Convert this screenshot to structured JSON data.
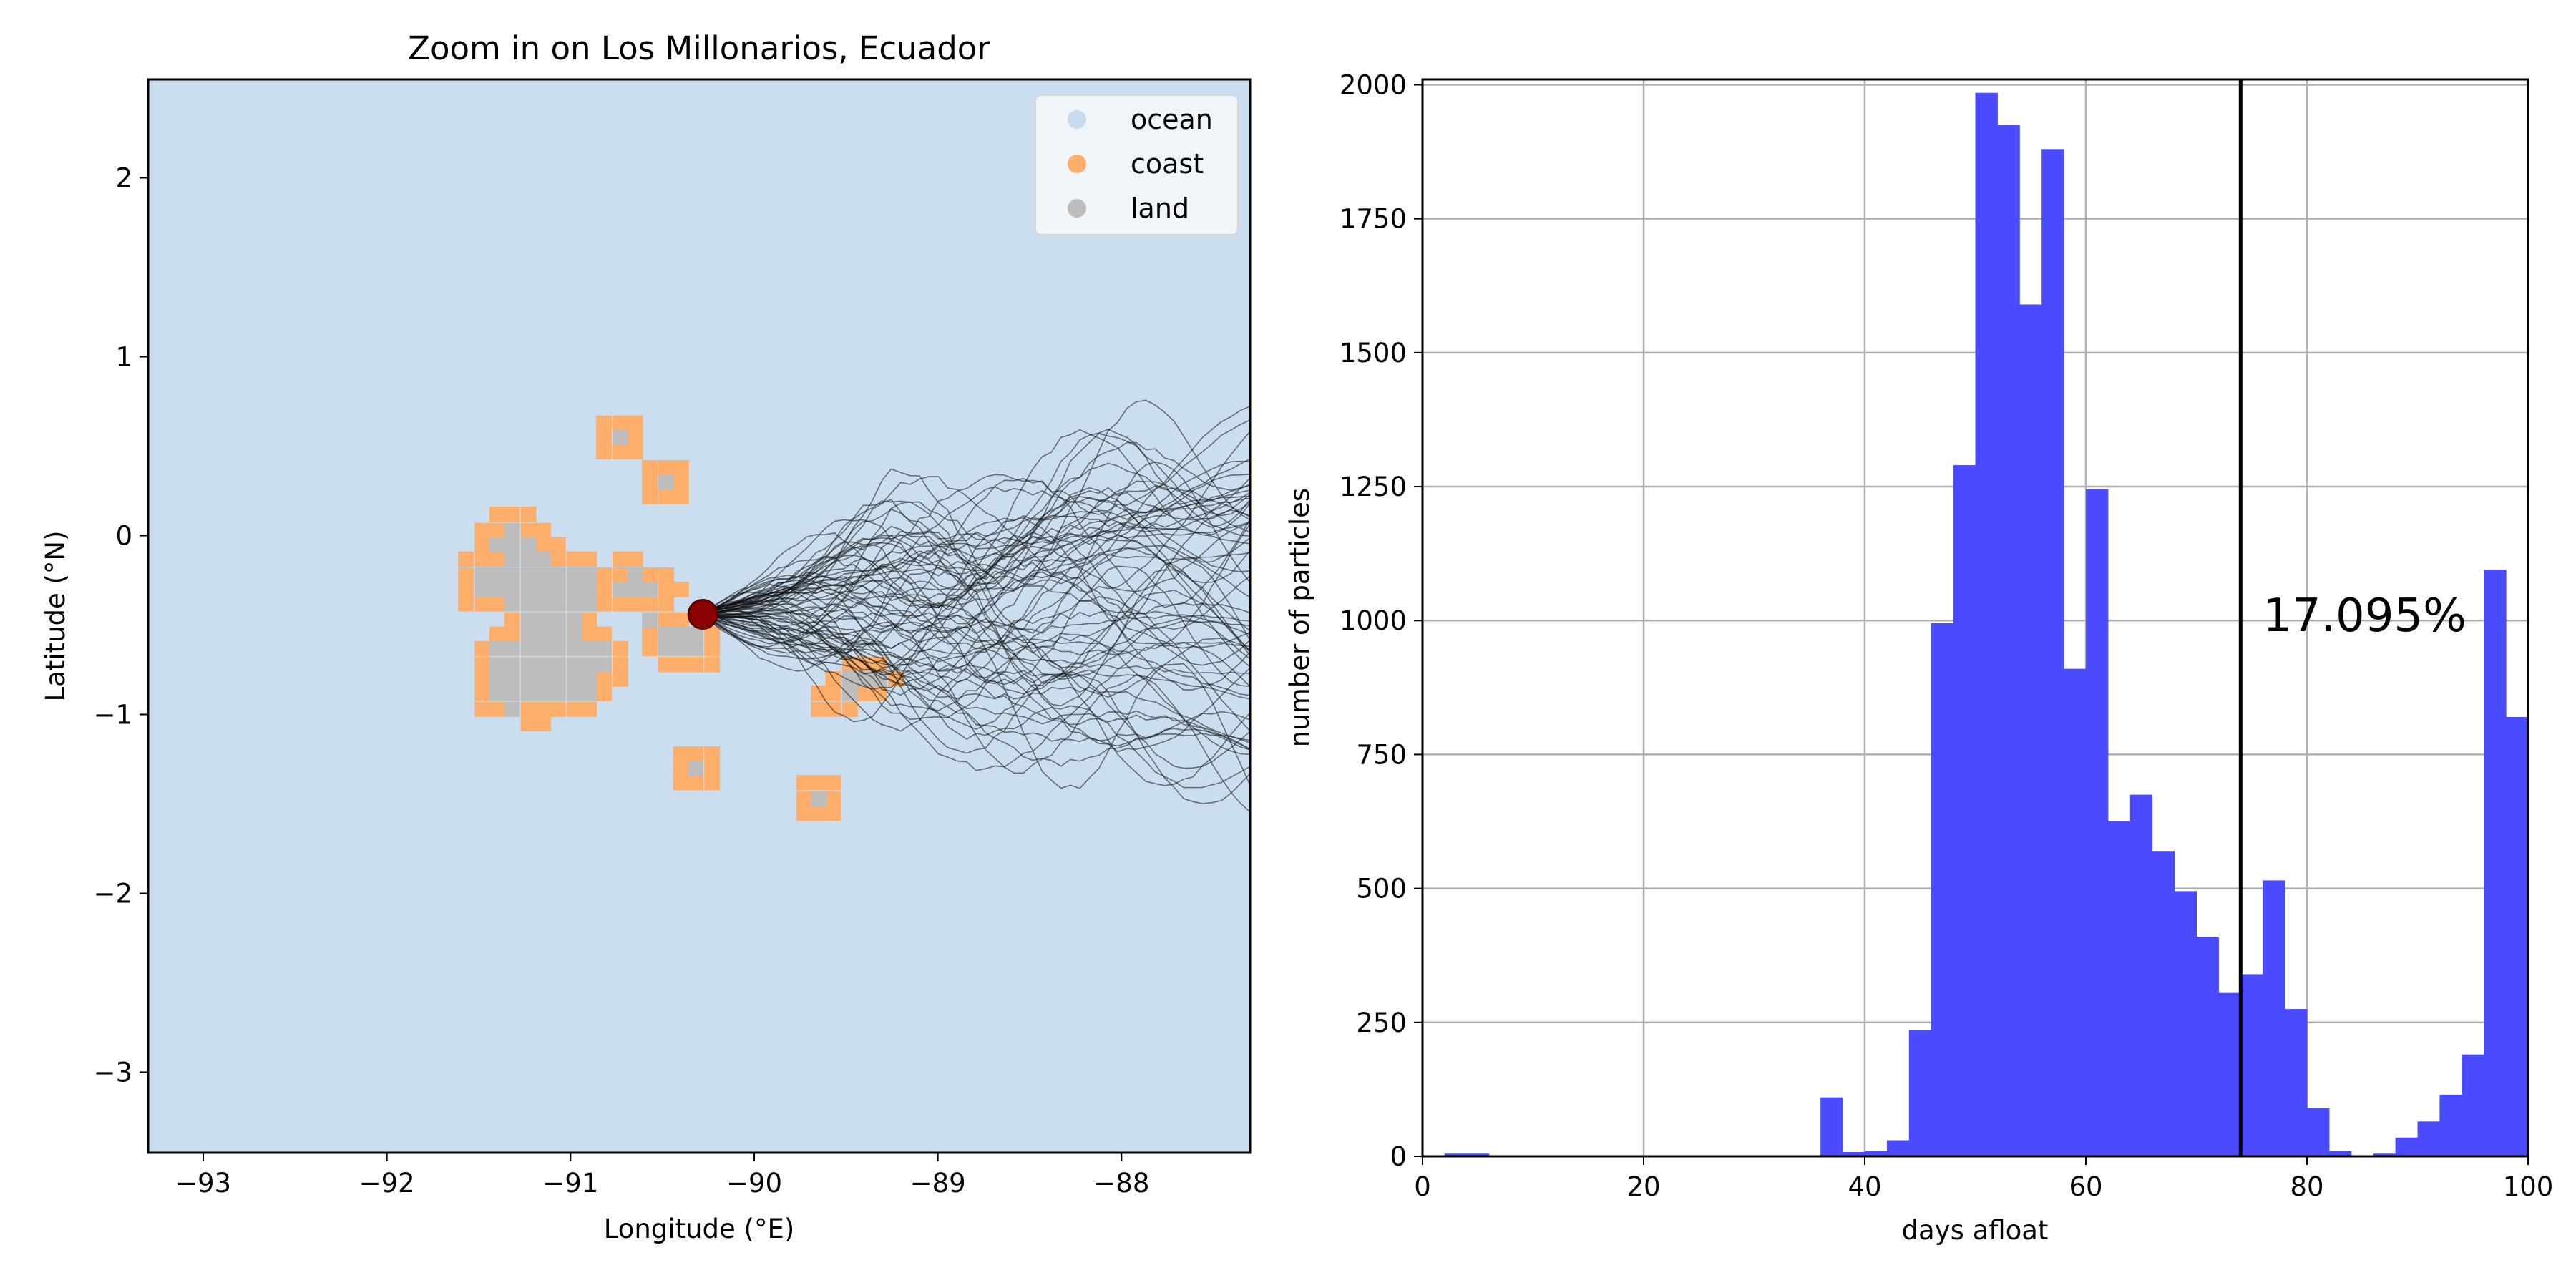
{
  "chart_data": [
    {
      "type": "map",
      "title": "Zoom in on Los Millonarios, Ecuador",
      "xlabel": "Longitude (°E)",
      "ylabel": "Latitude (°N)",
      "xlim": [
        -93.3,
        -87.3
      ],
      "ylim": [
        -3.45,
        2.55
      ],
      "xticks": [
        -93,
        -92,
        -91,
        -90,
        -89,
        -88
      ],
      "xtick_labels": [
        "−93",
        "−92",
        "−91",
        "−90",
        "−89",
        "−88"
      ],
      "yticks": [
        -3,
        -2,
        -1,
        0,
        1,
        2
      ],
      "ytick_labels": [
        "−3",
        "−2",
        "−1",
        "0",
        "1",
        "2"
      ],
      "legend": {
        "position": "top-right",
        "entries": [
          {
            "label": "ocean",
            "color": "#c6dbef"
          },
          {
            "label": "coast",
            "color": "#fdae6b"
          },
          {
            "label": "land",
            "color": "#bdbdbd"
          }
        ]
      },
      "background_color": "#cbdeef",
      "release_point": {
        "lon": -90.28,
        "lat": -0.44,
        "color": "#8b0000"
      },
      "grid_cell_deg": 0.0833,
      "coast_cells": [
        [
          -91.4,
          0.12
        ],
        [
          -91.32,
          0.12
        ],
        [
          -91.23,
          0.12
        ],
        [
          -91.48,
          0.03
        ],
        [
          -91.4,
          0.03
        ],
        [
          -91.32,
          0.03
        ],
        [
          -91.23,
          0.03
        ],
        [
          -91.15,
          0.03
        ],
        [
          -91.48,
          -0.05
        ],
        [
          -91.15,
          -0.05
        ],
        [
          -91.07,
          -0.05
        ],
        [
          -91.57,
          -0.13
        ],
        [
          -91.48,
          -0.13
        ],
        [
          -91.4,
          -0.13
        ],
        [
          -91.07,
          -0.13
        ],
        [
          -90.98,
          -0.13
        ],
        [
          -90.9,
          -0.13
        ],
        [
          -90.73,
          -0.13
        ],
        [
          -90.65,
          -0.13
        ],
        [
          -91.57,
          -0.22
        ],
        [
          -90.82,
          -0.22
        ],
        [
          -90.73,
          -0.22
        ],
        [
          -90.57,
          -0.22
        ],
        [
          -90.48,
          -0.22
        ],
        [
          -91.57,
          -0.3
        ],
        [
          -90.82,
          -0.3
        ],
        [
          -90.48,
          -0.3
        ],
        [
          -90.4,
          -0.3
        ],
        [
          -91.57,
          -0.38
        ],
        [
          -91.48,
          -0.38
        ],
        [
          -91.4,
          -0.38
        ],
        [
          -90.82,
          -0.38
        ],
        [
          -90.73,
          -0.38
        ],
        [
          -90.65,
          -0.38
        ],
        [
          -90.57,
          -0.38
        ],
        [
          -90.48,
          -0.38
        ],
        [
          -91.32,
          -0.47
        ],
        [
          -90.9,
          -0.47
        ],
        [
          -90.48,
          -0.47
        ],
        [
          -90.4,
          -0.47
        ],
        [
          -91.4,
          -0.55
        ],
        [
          -91.32,
          -0.55
        ],
        [
          -90.9,
          -0.55
        ],
        [
          -90.82,
          -0.55
        ],
        [
          -90.57,
          -0.55
        ],
        [
          -90.23,
          -0.55
        ],
        [
          -91.48,
          -0.63
        ],
        [
          -90.73,
          -0.63
        ],
        [
          -90.57,
          -0.63
        ],
        [
          -90.23,
          -0.63
        ],
        [
          -91.48,
          -0.72
        ],
        [
          -90.73,
          -0.72
        ],
        [
          -90.48,
          -0.72
        ],
        [
          -90.4,
          -0.72
        ],
        [
          -90.32,
          -0.72
        ],
        [
          -90.23,
          -0.72
        ],
        [
          -91.48,
          -0.8
        ],
        [
          -90.82,
          -0.8
        ],
        [
          -90.73,
          -0.8
        ],
        [
          -91.48,
          -0.88
        ],
        [
          -90.82,
          -0.88
        ],
        [
          -91.48,
          -0.97
        ],
        [
          -91.4,
          -0.97
        ],
        [
          -91.23,
          -0.97
        ],
        [
          -91.15,
          -0.97
        ],
        [
          -91.07,
          -0.97
        ],
        [
          -90.98,
          -0.97
        ],
        [
          -90.9,
          -0.97
        ],
        [
          -91.23,
          -1.05
        ],
        [
          -91.15,
          -1.05
        ],
        [
          -90.82,
          0.63
        ],
        [
          -90.73,
          0.63
        ],
        [
          -90.65,
          0.63
        ],
        [
          -90.82,
          0.55
        ],
        [
          -90.65,
          0.55
        ],
        [
          -90.82,
          0.47
        ],
        [
          -90.73,
          0.47
        ],
        [
          -90.65,
          0.47
        ],
        [
          -90.57,
          0.38
        ],
        [
          -90.48,
          0.38
        ],
        [
          -90.4,
          0.38
        ],
        [
          -90.57,
          0.3
        ],
        [
          -90.4,
          0.3
        ],
        [
          -90.57,
          0.22
        ],
        [
          -90.48,
          0.22
        ],
        [
          -90.4,
          0.22
        ],
        [
          -90.4,
          -1.22
        ],
        [
          -90.32,
          -1.22
        ],
        [
          -90.23,
          -1.22
        ],
        [
          -90.4,
          -1.3
        ],
        [
          -90.23,
          -1.3
        ],
        [
          -90.4,
          -1.38
        ],
        [
          -90.32,
          -1.38
        ],
        [
          -90.23,
          -1.38
        ],
        [
          -89.73,
          -1.38
        ],
        [
          -89.65,
          -1.38
        ],
        [
          -89.57,
          -1.38
        ],
        [
          -89.73,
          -1.47
        ],
        [
          -89.57,
          -1.47
        ],
        [
          -89.73,
          -1.55
        ],
        [
          -89.65,
          -1.55
        ],
        [
          -89.57,
          -1.55
        ],
        [
          -89.48,
          -0.72
        ],
        [
          -89.4,
          -0.72
        ],
        [
          -89.32,
          -0.72
        ],
        [
          -89.57,
          -0.8
        ],
        [
          -89.23,
          -0.8
        ],
        [
          -89.65,
          -0.88
        ],
        [
          -89.57,
          -0.88
        ],
        [
          -89.4,
          -0.88
        ],
        [
          -89.32,
          -0.88
        ],
        [
          -89.65,
          -0.97
        ],
        [
          -89.57,
          -0.97
        ],
        [
          -89.48,
          -0.97
        ]
      ],
      "land_cells": [
        [
          -91.32,
          0.03
        ],
        [
          -91.4,
          -0.05
        ],
        [
          -91.32,
          -0.05
        ],
        [
          -91.23,
          -0.05
        ],
        [
          -91.32,
          -0.13
        ],
        [
          -91.23,
          -0.13
        ],
        [
          -91.15,
          -0.13
        ],
        [
          -91.48,
          -0.22
        ],
        [
          -91.4,
          -0.22
        ],
        [
          -91.32,
          -0.22
        ],
        [
          -91.23,
          -0.22
        ],
        [
          -91.15,
          -0.22
        ],
        [
          -91.07,
          -0.22
        ],
        [
          -90.98,
          -0.22
        ],
        [
          -90.9,
          -0.22
        ],
        [
          -90.65,
          -0.22
        ],
        [
          -91.48,
          -0.3
        ],
        [
          -91.4,
          -0.3
        ],
        [
          -91.32,
          -0.3
        ],
        [
          -91.23,
          -0.3
        ],
        [
          -91.15,
          -0.3
        ],
        [
          -91.07,
          -0.3
        ],
        [
          -90.98,
          -0.3
        ],
        [
          -90.9,
          -0.3
        ],
        [
          -90.73,
          -0.3
        ],
        [
          -90.65,
          -0.3
        ],
        [
          -90.57,
          -0.3
        ],
        [
          -91.32,
          -0.38
        ],
        [
          -91.23,
          -0.38
        ],
        [
          -91.15,
          -0.38
        ],
        [
          -91.07,
          -0.38
        ],
        [
          -90.98,
          -0.38
        ],
        [
          -90.9,
          -0.38
        ],
        [
          -91.23,
          -0.47
        ],
        [
          -91.15,
          -0.47
        ],
        [
          -91.07,
          -0.47
        ],
        [
          -90.98,
          -0.47
        ],
        [
          -90.57,
          -0.47
        ],
        [
          -91.23,
          -0.55
        ],
        [
          -91.15,
          -0.55
        ],
        [
          -91.07,
          -0.55
        ],
        [
          -90.98,
          -0.55
        ],
        [
          -90.48,
          -0.55
        ],
        [
          -90.4,
          -0.55
        ],
        [
          -90.32,
          -0.55
        ],
        [
          -91.4,
          -0.63
        ],
        [
          -91.32,
          -0.63
        ],
        [
          -91.23,
          -0.63
        ],
        [
          -91.15,
          -0.63
        ],
        [
          -91.07,
          -0.63
        ],
        [
          -90.98,
          -0.63
        ],
        [
          -90.9,
          -0.63
        ],
        [
          -90.82,
          -0.63
        ],
        [
          -90.48,
          -0.63
        ],
        [
          -90.4,
          -0.63
        ],
        [
          -90.32,
          -0.63
        ],
        [
          -91.4,
          -0.72
        ],
        [
          -91.32,
          -0.72
        ],
        [
          -91.23,
          -0.72
        ],
        [
          -91.15,
          -0.72
        ],
        [
          -91.07,
          -0.72
        ],
        [
          -90.98,
          -0.72
        ],
        [
          -90.9,
          -0.72
        ],
        [
          -90.82,
          -0.72
        ],
        [
          -91.4,
          -0.8
        ],
        [
          -91.32,
          -0.8
        ],
        [
          -91.23,
          -0.8
        ],
        [
          -91.15,
          -0.8
        ],
        [
          -91.07,
          -0.8
        ],
        [
          -90.98,
          -0.8
        ],
        [
          -90.9,
          -0.8
        ],
        [
          -91.4,
          -0.88
        ],
        [
          -91.32,
          -0.88
        ],
        [
          -91.23,
          -0.88
        ],
        [
          -91.15,
          -0.88
        ],
        [
          -91.07,
          -0.88
        ],
        [
          -90.98,
          -0.88
        ],
        [
          -90.9,
          -0.88
        ],
        [
          -91.32,
          -0.97
        ],
        [
          -90.73,
          0.55
        ],
        [
          -90.48,
          0.3
        ],
        [
          -90.32,
          -1.3
        ],
        [
          -89.65,
          -1.47
        ],
        [
          -89.48,
          -0.8
        ],
        [
          -89.4,
          -0.8
        ],
        [
          -89.32,
          -0.8
        ],
        [
          -89.48,
          -0.88
        ]
      ]
    },
    {
      "type": "bar",
      "subtype": "histogram",
      "xlabel": "days afloat",
      "ylabel": "number of particles",
      "xlim": [
        0,
        100
      ],
      "ylim": [
        0,
        2010
      ],
      "xticks": [
        0,
        20,
        40,
        60,
        80,
        100
      ],
      "xtick_labels": [
        "0",
        "20",
        "40",
        "60",
        "80",
        "100"
      ],
      "yticks": [
        0,
        250,
        500,
        750,
        1000,
        1250,
        1500,
        1750,
        2000
      ],
      "ytick_labels": [
        "0",
        "250",
        "500",
        "750",
        "1000",
        "1250",
        "1500",
        "1750",
        "2000"
      ],
      "grid": true,
      "bar_color": "#4a4aff",
      "bin_width": 2,
      "bin_starts": [
        0,
        2,
        4,
        6,
        8,
        10,
        12,
        14,
        16,
        18,
        20,
        22,
        24,
        26,
        28,
        30,
        32,
        34,
        36,
        38,
        40,
        42,
        44,
        46,
        48,
        50,
        52,
        54,
        56,
        58,
        60,
        62,
        64,
        66,
        68,
        70,
        72,
        74,
        76,
        78,
        80,
        82,
        84,
        86,
        88,
        90,
        92,
        94,
        96,
        98
      ],
      "values": [
        0,
        5,
        5,
        0,
        0,
        0,
        0,
        0,
        0,
        0,
        0,
        0,
        0,
        0,
        0,
        0,
        0,
        2,
        110,
        8,
        10,
        30,
        235,
        995,
        1290,
        1985,
        1925,
        1590,
        1880,
        910,
        1245,
        625,
        675,
        570,
        495,
        410,
        305,
        340,
        515,
        275,
        90,
        10,
        0,
        5,
        35,
        65,
        115,
        190,
        1095,
        820
      ],
      "vline": {
        "x": 74,
        "color": "#000000"
      },
      "annotation": {
        "text": "17.095%",
        "x": 76,
        "y": 980
      }
    }
  ]
}
